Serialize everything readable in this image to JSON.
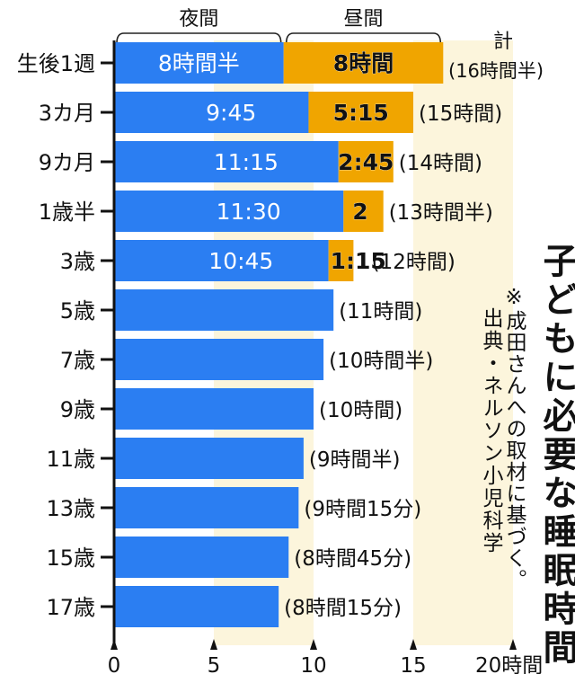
{
  "chart_data": {
    "type": "bar",
    "orientation": "horizontal",
    "stacked": true,
    "categories": [
      "生後1週",
      "3カ月",
      "9カ月",
      "1歳半",
      "3歳",
      "5歳",
      "7歳",
      "9歳",
      "11歳",
      "13歳",
      "15歳",
      "17歳"
    ],
    "series": [
      {
        "name": "夜間",
        "color": "#2b7ef2",
        "values": [
          8.5,
          9.75,
          11.25,
          11.5,
          10.75,
          11,
          10.5,
          10,
          9.5,
          9.25,
          8.75,
          8.25
        ]
      },
      {
        "name": "昼間",
        "color": "#f0a500",
        "values": [
          8,
          5.25,
          2.75,
          2,
          1.25,
          0,
          0,
          0,
          0,
          0,
          0,
          0
        ]
      }
    ],
    "night_labels": [
      "8時間半",
      "9:45",
      "11:15",
      "11:30",
      "10:45",
      "",
      "",
      "",
      "",
      "",
      "",
      ""
    ],
    "day_labels": [
      "8時間",
      "5:15",
      "2:45",
      "2",
      "1:15",
      "",
      "",
      "",
      "",
      "",
      "",
      ""
    ],
    "total_labels": [
      "(16時間半)",
      "(15時間)",
      "(14時間)",
      "(13時間半)",
      "(12時間)",
      "(11時間)",
      "(10時間半)",
      "(10時間)",
      "(9時間半)",
      "(9時間15分)",
      "(8時間45分)",
      "(8時間15分)"
    ],
    "total_prefix_first": "計",
    "xlim": [
      0,
      20
    ],
    "xticks": [
      "0",
      "5",
      "10",
      "15",
      "20時間"
    ],
    "xtick_values": [
      0,
      5,
      10,
      15,
      20
    ],
    "shaded_bands": [
      [
        5,
        10
      ],
      [
        15,
        20
      ]
    ],
    "band_color": "#fcf5dc",
    "title": "子どもに必要な睡眠時間",
    "note": "※成田さんへの取材に基づく。",
    "source": "出典・ネルソン小児科学"
  }
}
